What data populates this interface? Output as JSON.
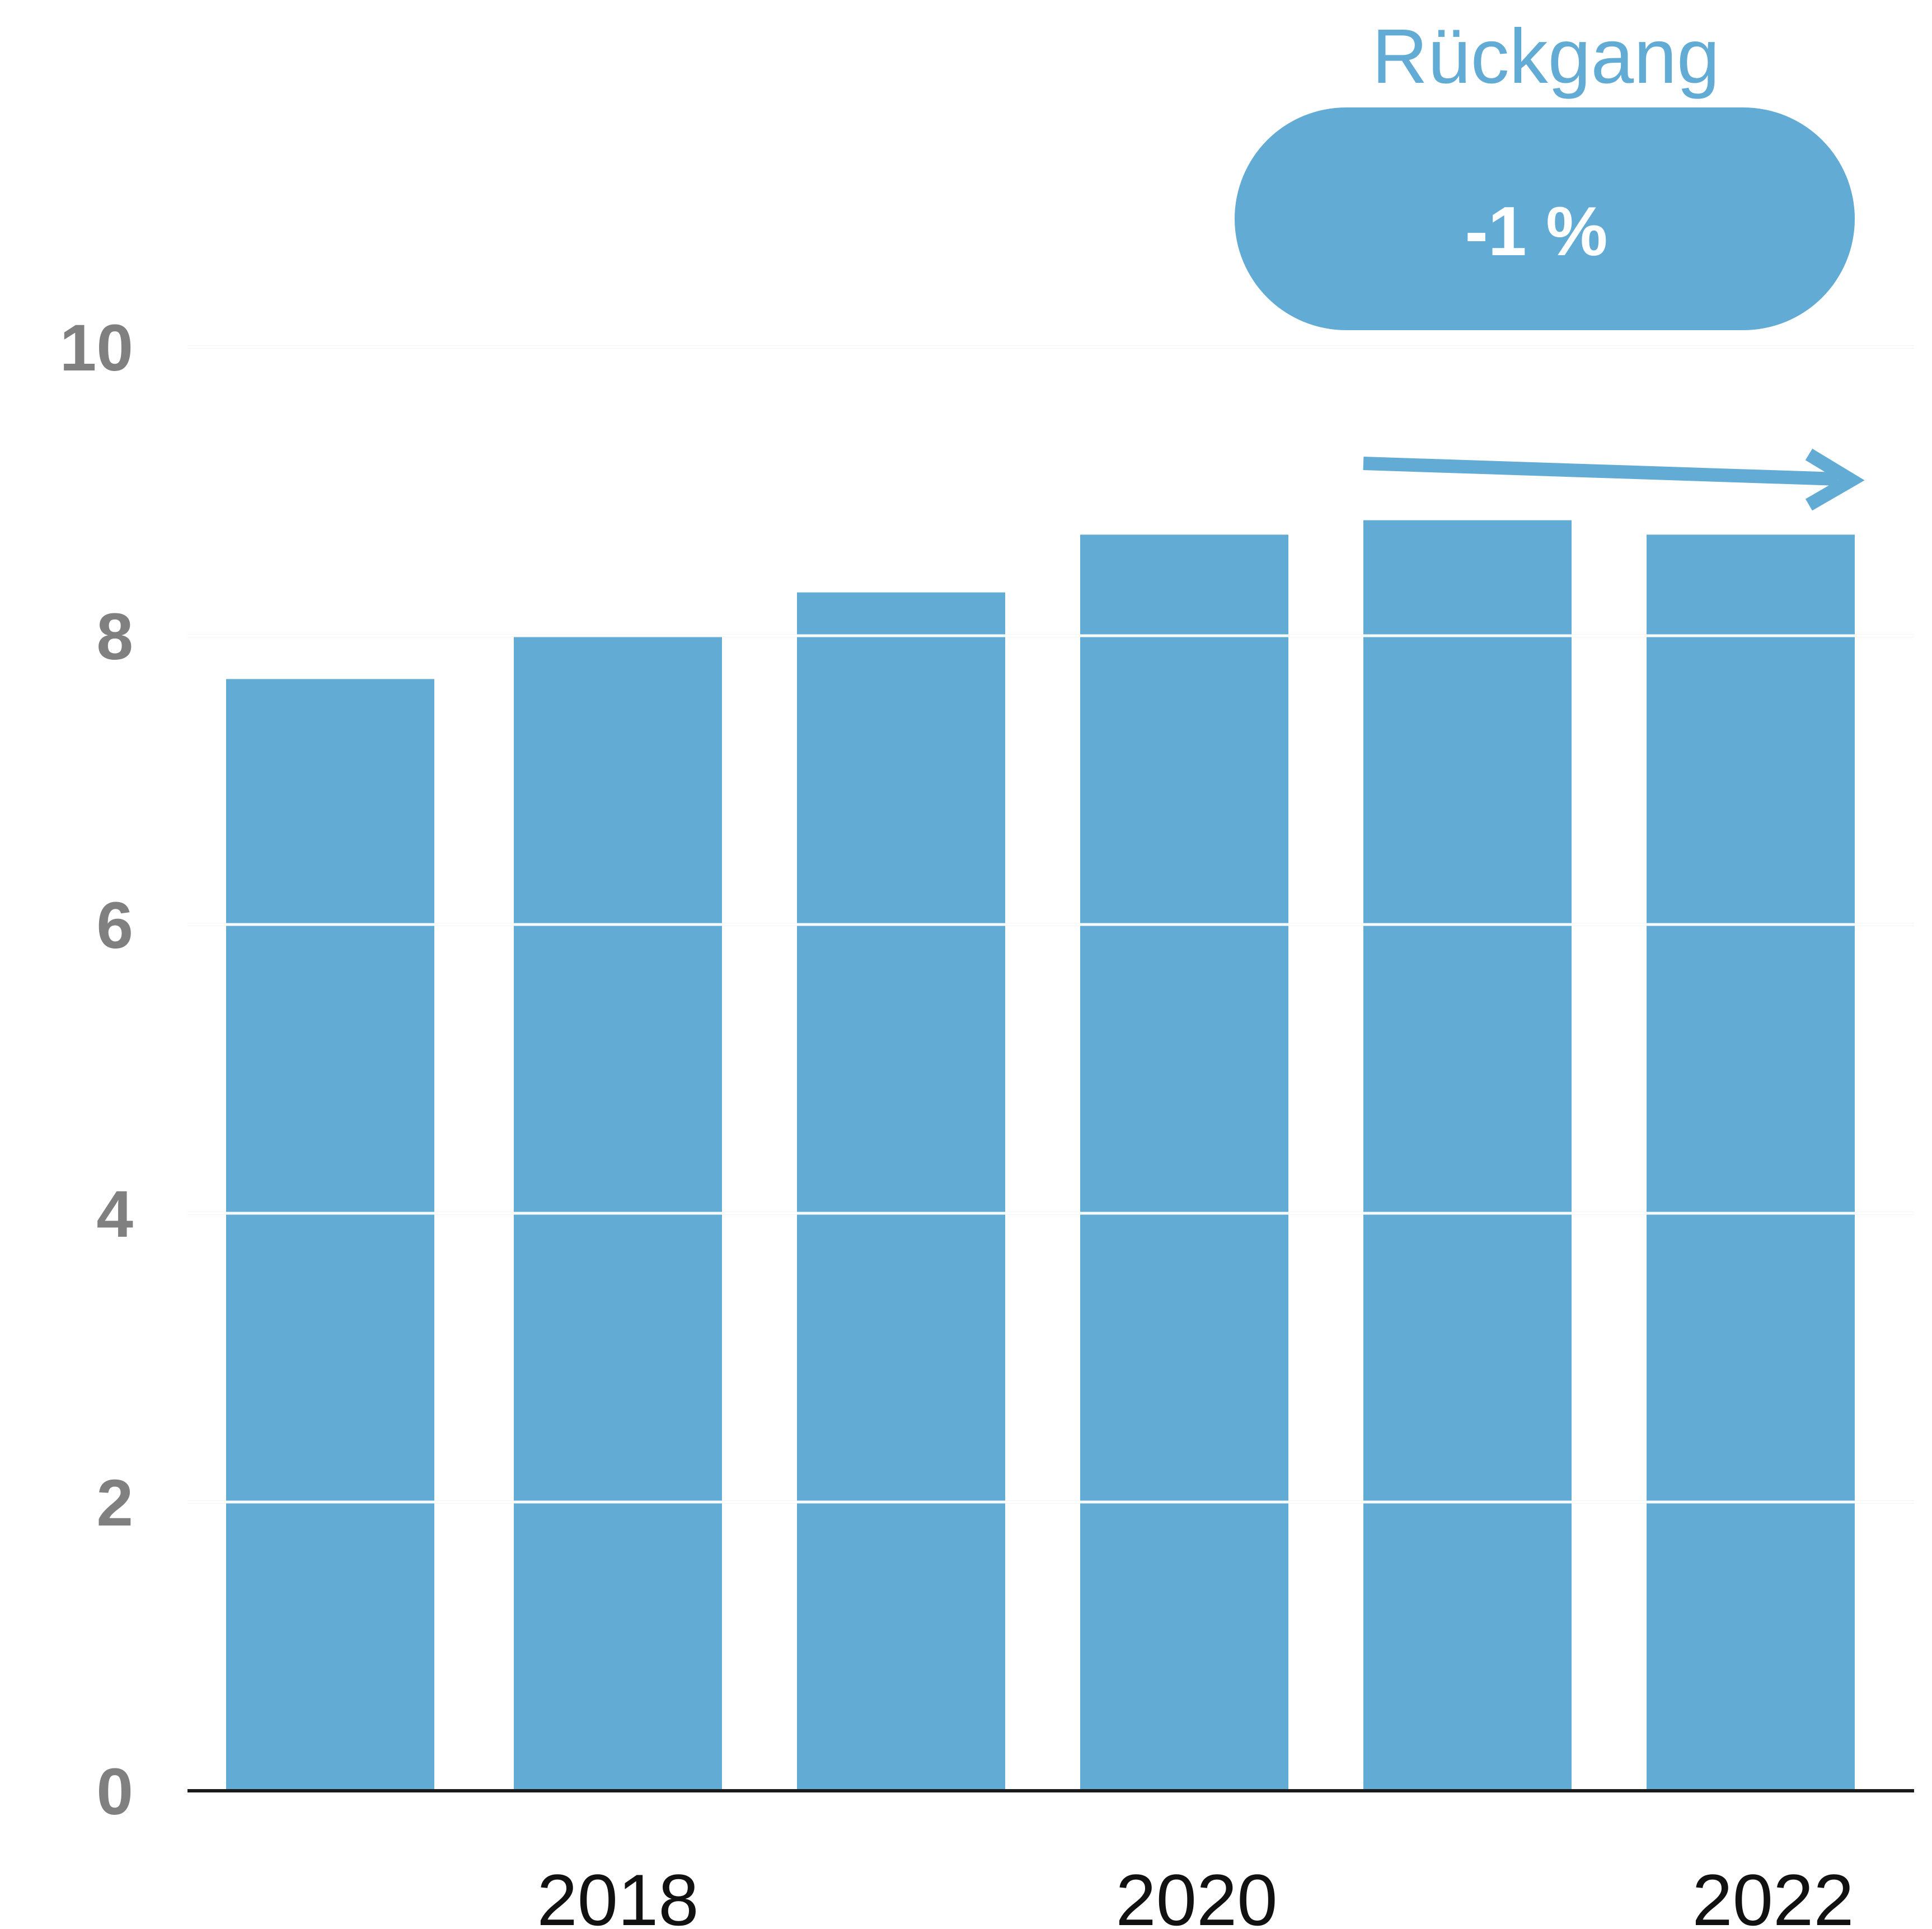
{
  "chart_data": {
    "type": "bar",
    "title": "",
    "xlabel": "",
    "ylabel": "",
    "categories": [
      "",
      "2018",
      "",
      "2020",
      "",
      "2022"
    ],
    "values": [
      7.7,
      8.0,
      8.3,
      8.7,
      8.8,
      8.7
    ],
    "ylim": [
      0,
      10
    ],
    "yticks": [
      "0",
      "2",
      "4",
      "6",
      "8",
      "10"
    ],
    "grid": true,
    "annotation": {
      "label": "Rückgang",
      "value": "-1 %",
      "arrow_from_category_index": 4,
      "arrow_to_category_index": 5,
      "direction": "down"
    },
    "colors": {
      "bar": "#61abd5",
      "grid": "#eeeeee",
      "axis": "#1a1a1a",
      "accent": "#61abd5"
    }
  }
}
